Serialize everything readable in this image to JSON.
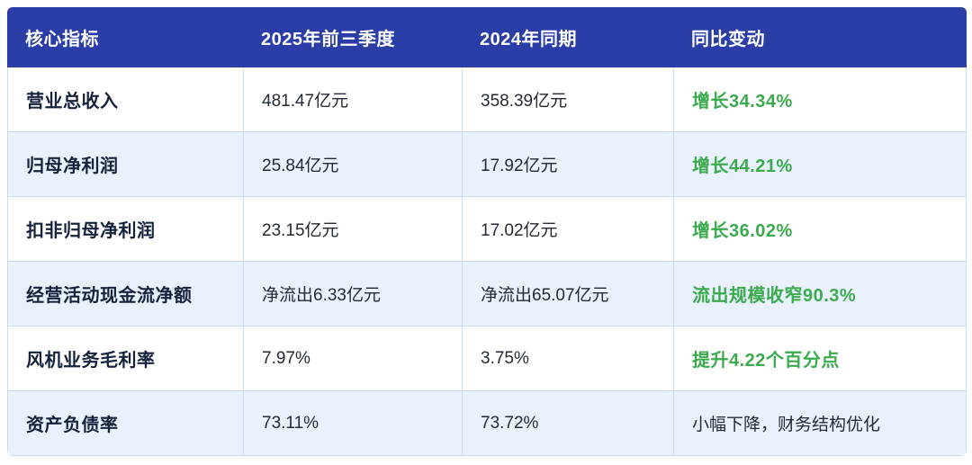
{
  "colors": {
    "header-bg": "#2B3DA6",
    "header-text": "#FFFFFF",
    "row-bg": "#FFFFFF",
    "row-alt-bg": "#E9F1FC",
    "grid-line": "#C6DCF5",
    "indicator-text": "#16223C",
    "value-text": "#222A36",
    "positive": "#3BAA4D"
  },
  "table": {
    "headers": [
      "核心指标",
      "2025年前三季度",
      "2024年同期",
      "同比变动"
    ],
    "rows": [
      {
        "indicator": "营业总收入",
        "current": "481.47亿元",
        "prior": "358.39亿元",
        "change": "增长34.34%",
        "change_type": "positive"
      },
      {
        "indicator": "归母净利润",
        "current": "25.84亿元",
        "prior": "17.92亿元",
        "change": "增长44.21%",
        "change_type": "positive"
      },
      {
        "indicator": "扣非归母净利润",
        "current": "23.15亿元",
        "prior": "17.02亿元",
        "change": "增长36.02%",
        "change_type": "positive"
      },
      {
        "indicator": "经营活动现金流净额",
        "current": "净流出6.33亿元",
        "prior": "净流出65.07亿元",
        "change": "流出规模收窄90.3%",
        "change_type": "positive"
      },
      {
        "indicator": "风机业务毛利率",
        "current": "7.97%",
        "prior": "3.75%",
        "change": "提升4.22个百分点",
        "change_type": "positive"
      },
      {
        "indicator": "资产负债率",
        "current": "73.11%",
        "prior": "73.72%",
        "change": "小幅下降，财务结构优化",
        "change_type": "neutral"
      }
    ]
  }
}
